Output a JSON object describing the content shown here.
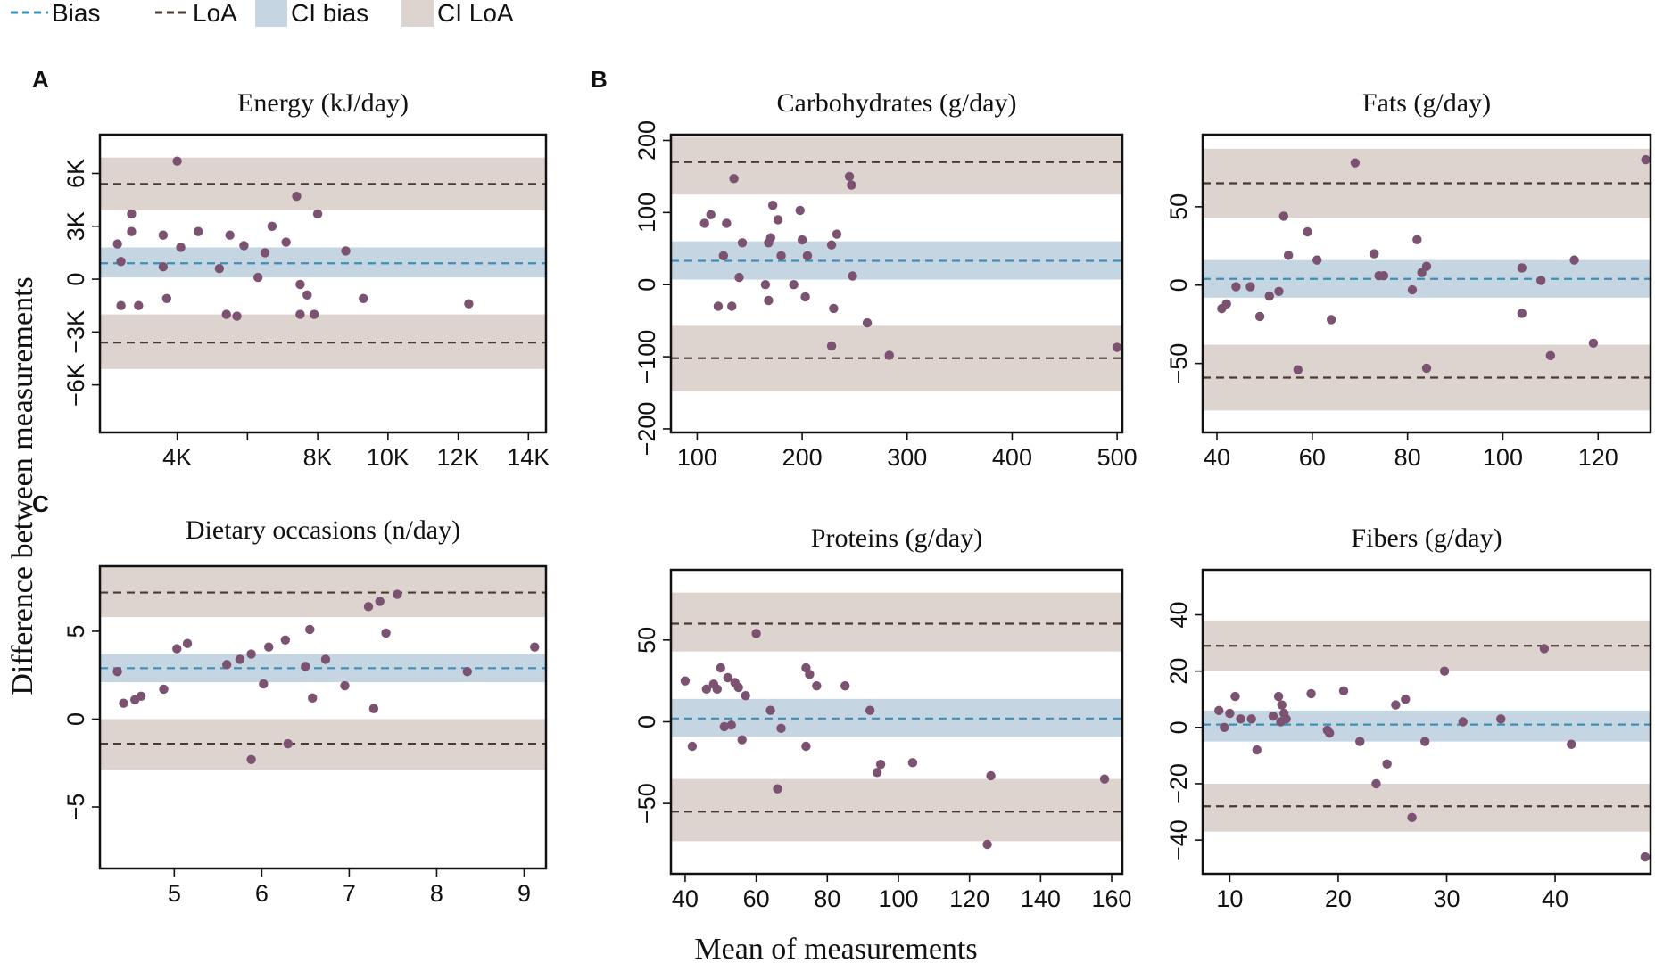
{
  "legend": {
    "items": [
      {
        "label": "Bias",
        "kind": "line",
        "color": "#3e8fb5"
      },
      {
        "label": "LoA",
        "kind": "line",
        "color": "#4a3a33"
      },
      {
        "label": "CI bias",
        "kind": "box",
        "color": "#c5d6e2"
      },
      {
        "label": "CI LoA",
        "kind": "box",
        "color": "#ddd4cf"
      }
    ]
  },
  "y_label": "Difference between measurements",
  "x_label": "Mean of measurements",
  "panel_letters": [
    "A",
    "B",
    "C"
  ],
  "colors": {
    "point": "#7b5270",
    "bias_line": "#3e8fb5",
    "loa_line": "#4a3a33",
    "ci_bias": "#c5d6e2",
    "ci_loa": "#ddd4cf"
  },
  "chart_data": [
    {
      "type": "scatter",
      "title": "Energy (kJ/day)",
      "xlim": [
        1800,
        14500
      ],
      "ylim": [
        -8700,
        8200
      ],
      "xticks": [
        4000,
        6000,
        8000,
        10000,
        12000,
        14000
      ],
      "xtick_labels": [
        "4K",
        "8K",
        "10K",
        "12K",
        "14K"
      ],
      "xtick_values": [
        4000,
        8000,
        10000,
        12000,
        14000
      ],
      "yticks": [
        6000,
        3000,
        0,
        -3000,
        -6000
      ],
      "ytick_labels": [
        "6K",
        "3K",
        "0",
        "−3K",
        "−6K"
      ],
      "bias": 900,
      "ci_bias": [
        100,
        1800
      ],
      "loa_upper": 5400,
      "ci_loa_upper": [
        3900,
        6900
      ],
      "loa_lower": -3600,
      "ci_lower_band": [
        -5100,
        -2000
      ],
      "points": [
        [
          2300,
          2000
        ],
        [
          2400,
          1000
        ],
        [
          2400,
          -1500
        ],
        [
          2700,
          3700
        ],
        [
          2700,
          2700
        ],
        [
          2900,
          -1500
        ],
        [
          3600,
          2500
        ],
        [
          3600,
          700
        ],
        [
          3700,
          -1100
        ],
        [
          4000,
          6700
        ],
        [
          4100,
          1800
        ],
        [
          4600,
          2700
        ],
        [
          5200,
          600
        ],
        [
          5400,
          -2000
        ],
        [
          5500,
          2500
        ],
        [
          5700,
          -2100
        ],
        [
          5900,
          1900
        ],
        [
          6300,
          100
        ],
        [
          6500,
          1500
        ],
        [
          6700,
          3000
        ],
        [
          7100,
          2100
        ],
        [
          7400,
          4700
        ],
        [
          7500,
          -300
        ],
        [
          7500,
          -2000
        ],
        [
          7700,
          -900
        ],
        [
          7900,
          -2000
        ],
        [
          8000,
          3700
        ],
        [
          8800,
          1600
        ],
        [
          9300,
          -1100
        ],
        [
          12300,
          -1400
        ]
      ]
    },
    {
      "type": "scatter",
      "title": "Carbohydrates (g/day)",
      "xlim": [
        75,
        505
      ],
      "ylim": [
        -205,
        208
      ],
      "xticks": [
        100,
        200,
        300,
        400,
        500
      ],
      "xtick_labels": [
        "100",
        "200",
        "300",
        "400",
        "500"
      ],
      "yticks": [
        200,
        100,
        0,
        -100,
        -200
      ],
      "ytick_labels": [
        "200",
        "100",
        "0",
        "−100",
        "−200"
      ],
      "bias": 33,
      "ci_bias": [
        7,
        60
      ],
      "loa_upper": 170,
      "ci_loa_upper": [
        125,
        205
      ],
      "loa_lower": -102,
      "ci_lower_band": [
        -148,
        -57
      ],
      "points": [
        [
          107,
          85
        ],
        [
          113,
          97
        ],
        [
          120,
          -30
        ],
        [
          125,
          40
        ],
        [
          128,
          85
        ],
        [
          133,
          -30
        ],
        [
          135,
          147
        ],
        [
          140,
          10
        ],
        [
          143,
          58
        ],
        [
          165,
          0
        ],
        [
          168,
          -22
        ],
        [
          168,
          58
        ],
        [
          170,
          65
        ],
        [
          172,
          110
        ],
        [
          177,
          90
        ],
        [
          180,
          40
        ],
        [
          192,
          0
        ],
        [
          198,
          103
        ],
        [
          200,
          62
        ],
        [
          203,
          -17
        ],
        [
          205,
          40
        ],
        [
          228,
          55
        ],
        [
          228,
          -85
        ],
        [
          230,
          -33
        ],
        [
          233,
          70
        ],
        [
          245,
          150
        ],
        [
          247,
          138
        ],
        [
          248,
          12
        ],
        [
          262,
          -53
        ],
        [
          283,
          -98
        ],
        [
          500,
          -87
        ]
      ]
    },
    {
      "type": "scatter",
      "title": "Fats (g/day)",
      "xlim": [
        37,
        131
      ],
      "ylim": [
        -94,
        96
      ],
      "xticks": [
        40,
        60,
        80,
        100,
        120
      ],
      "xtick_labels": [
        "40",
        "60",
        "80",
        "100",
        "120"
      ],
      "yticks": [
        50,
        0,
        -50
      ],
      "ytick_labels": [
        "50",
        "0",
        "−50"
      ],
      "bias": 4,
      "ci_bias": [
        -8,
        16
      ],
      "loa_upper": 65,
      "ci_loa_upper": [
        43,
        87
      ],
      "loa_lower": -59,
      "ci_lower_band": [
        -80,
        -38
      ],
      "points": [
        [
          41,
          -15
        ],
        [
          42,
          -12
        ],
        [
          44,
          -1
        ],
        [
          47,
          -1
        ],
        [
          49,
          -20
        ],
        [
          51,
          -7
        ],
        [
          53,
          -4
        ],
        [
          54,
          44
        ],
        [
          55,
          19
        ],
        [
          57,
          -54
        ],
        [
          59,
          34
        ],
        [
          61,
          16
        ],
        [
          64,
          -22
        ],
        [
          69,
          78
        ],
        [
          73,
          20
        ],
        [
          74,
          6
        ],
        [
          75,
          6
        ],
        [
          81,
          -3
        ],
        [
          82,
          29
        ],
        [
          83,
          8
        ],
        [
          84,
          12
        ],
        [
          84,
          -53
        ],
        [
          104,
          -18
        ],
        [
          104,
          11
        ],
        [
          108,
          3
        ],
        [
          110,
          -45
        ],
        [
          115,
          16
        ],
        [
          119,
          -37
        ],
        [
          130,
          80
        ]
      ]
    },
    {
      "type": "scatter",
      "title": "Dietary occasions (n/day)",
      "xlim": [
        4.15,
        9.25
      ],
      "ylim": [
        -8.5,
        8.7
      ],
      "xticks": [
        5,
        6,
        7,
        8,
        9
      ],
      "xtick_labels": [
        "5",
        "6",
        "7",
        "8",
        "9"
      ],
      "yticks": [
        5,
        0,
        -5
      ],
      "ytick_labels": [
        "5",
        "0",
        "−5"
      ],
      "bias": 2.9,
      "ci_bias": [
        2.1,
        3.7
      ],
      "loa_upper": 7.2,
      "ci_loa_upper": [
        5.8,
        8.7
      ],
      "loa_lower": -1.4,
      "ci_lower_band": [
        -2.9,
        0
      ],
      "points": [
        [
          4.35,
          2.7
        ],
        [
          4.42,
          0.9
        ],
        [
          4.55,
          1.1
        ],
        [
          4.62,
          1.3
        ],
        [
          4.88,
          1.7
        ],
        [
          5.03,
          4.0
        ],
        [
          5.15,
          4.3
        ],
        [
          5.6,
          3.1
        ],
        [
          5.75,
          3.4
        ],
        [
          5.88,
          3.7
        ],
        [
          5.88,
          -2.3
        ],
        [
          6.02,
          2.0
        ],
        [
          6.08,
          4.1
        ],
        [
          6.27,
          4.5
        ],
        [
          6.3,
          -1.4
        ],
        [
          6.5,
          3.0
        ],
        [
          6.55,
          5.1
        ],
        [
          6.58,
          1.2
        ],
        [
          6.73,
          3.4
        ],
        [
          6.95,
          1.9
        ],
        [
          7.22,
          6.4
        ],
        [
          7.28,
          0.6
        ],
        [
          7.35,
          6.7
        ],
        [
          7.42,
          4.9
        ],
        [
          7.55,
          7.1
        ],
        [
          8.35,
          2.7
        ],
        [
          9.12,
          4.1
        ]
      ]
    },
    {
      "type": "scatter",
      "title": "Proteins (g/day)",
      "xlim": [
        36,
        163
      ],
      "ylim": [
        -93,
        93
      ],
      "xticks": [
        40,
        60,
        80,
        100,
        120,
        140,
        160
      ],
      "xtick_labels": [
        "40",
        "60",
        "80",
        "100",
        "120",
        "140",
        "160"
      ],
      "yticks": [
        50,
        0,
        -50
      ],
      "ytick_labels": [
        "50",
        "0",
        "−50"
      ],
      "bias": 2,
      "ci_bias": [
        -9,
        14
      ],
      "loa_upper": 60,
      "ci_loa_upper": [
        43,
        79
      ],
      "loa_lower": -55,
      "ci_lower_band": [
        -73,
        -35
      ],
      "points": [
        [
          40,
          25
        ],
        [
          42,
          -15
        ],
        [
          46,
          20
        ],
        [
          48,
          23
        ],
        [
          49,
          20
        ],
        [
          50,
          33
        ],
        [
          51,
          -3
        ],
        [
          52,
          27
        ],
        [
          53,
          -2
        ],
        [
          54,
          24
        ],
        [
          55,
          21
        ],
        [
          56,
          -11
        ],
        [
          57,
          16
        ],
        [
          60,
          54
        ],
        [
          64,
          7
        ],
        [
          66,
          -41
        ],
        [
          67,
          -4
        ],
        [
          74,
          -15
        ],
        [
          74,
          33
        ],
        [
          75,
          29
        ],
        [
          77,
          22
        ],
        [
          85,
          22
        ],
        [
          92,
          7
        ],
        [
          94,
          -31
        ],
        [
          95,
          -26
        ],
        [
          104,
          -25
        ],
        [
          125,
          -75
        ],
        [
          126,
          -33
        ],
        [
          158,
          -35
        ]
      ]
    },
    {
      "type": "scatter",
      "title": "Fibers (g/day)",
      "xlim": [
        7.5,
        48.8
      ],
      "ylim": [
        -52,
        56
      ],
      "xticks": [
        10,
        20,
        30,
        40
      ],
      "xtick_labels": [
        "10",
        "20",
        "30",
        "40"
      ],
      "yticks": [
        40,
        20,
        0,
        -20,
        -40
      ],
      "ytick_labels": [
        "40",
        "20",
        "0",
        "−20",
        "−40"
      ],
      "bias": 1,
      "ci_bias": [
        -5,
        6
      ],
      "loa_upper": 29,
      "ci_loa_upper": [
        20,
        38
      ],
      "loa_lower": -28,
      "ci_lower_band": [
        -37,
        -20
      ],
      "points": [
        [
          9,
          6
        ],
        [
          9.5,
          0
        ],
        [
          10,
          5
        ],
        [
          10.5,
          11
        ],
        [
          11,
          3
        ],
        [
          12,
          3
        ],
        [
          12.5,
          -8
        ],
        [
          14,
          4
        ],
        [
          14.5,
          11
        ],
        [
          14.7,
          2
        ],
        [
          14.8,
          8
        ],
        [
          15,
          5
        ],
        [
          15.2,
          3
        ],
        [
          17.5,
          12
        ],
        [
          19,
          -1
        ],
        [
          19.2,
          -2
        ],
        [
          20.5,
          13
        ],
        [
          22,
          -5
        ],
        [
          23.5,
          -20
        ],
        [
          24.5,
          -13
        ],
        [
          25.3,
          8
        ],
        [
          26.2,
          10
        ],
        [
          26.8,
          -32
        ],
        [
          28,
          -5
        ],
        [
          29.8,
          20
        ],
        [
          31.5,
          2
        ],
        [
          35,
          3
        ],
        [
          39,
          28
        ],
        [
          41.5,
          -6
        ],
        [
          48.3,
          -46
        ]
      ]
    }
  ]
}
